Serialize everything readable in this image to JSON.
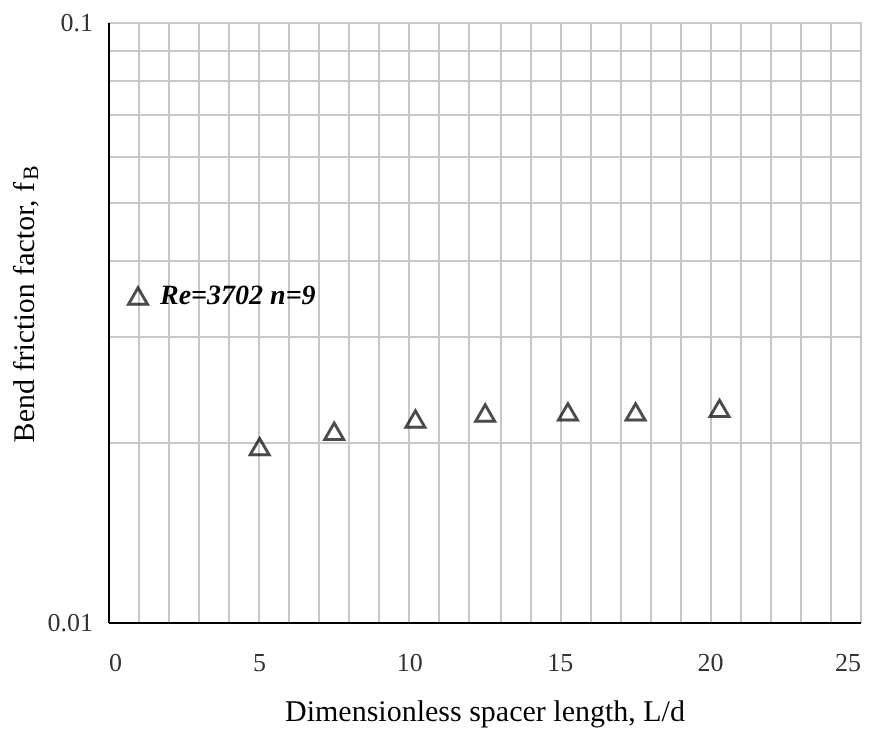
{
  "chart_data": {
    "type": "scatter",
    "xlabel": "Dimensionless spacer length, L/d",
    "ylabel": "Bend friction factor, f$_{B}$",
    "x": [
      5.04,
      7.52,
      10.22,
      12.54,
      15.29,
      17.54,
      20.33
    ],
    "series": [
      {
        "name": "Re=3702 n=9",
        "color": "#000000",
        "values": [
          0.0196,
          0.0208,
          0.0218,
          0.0223,
          0.0224,
          0.0224,
          0.0227
        ]
      }
    ],
    "marker": "triangle",
    "log": "y",
    "legend": "left",
    "grid": true,
    "xlim": [
      0,
      25
    ],
    "xticks": [
      0,
      {
        "value": 1,
        "label": null
      },
      {
        "value": 2,
        "label": null
      },
      {
        "value": 3,
        "label": null
      },
      {
        "value": 4,
        "label": null
      },
      5,
      {
        "value": 6,
        "label": null
      },
      {
        "value": 7,
        "label": null
      },
      {
        "value": 8,
        "label": null
      },
      {
        "value": 9,
        "label": null
      },
      10,
      {
        "value": 11,
        "label": null
      },
      {
        "value": 12,
        "label": null
      },
      {
        "value": 13,
        "label": null
      },
      {
        "value": 14,
        "label": null
      },
      15,
      {
        "value": 16,
        "label": null
      },
      {
        "value": 17,
        "label": null
      },
      {
        "value": 18,
        "label": null
      },
      {
        "value": 19,
        "label": null
      },
      20,
      {
        "value": 21,
        "label": null
      },
      {
        "value": 22,
        "label": null
      },
      {
        "value": 23,
        "label": null
      },
      {
        "value": 24,
        "label": null
      },
      25
    ],
    "ylim": [
      0.01,
      0.1
    ],
    "yticks": [
      0.01,
      {
        "value": 0.02,
        "label": null
      },
      {
        "value": 0.03,
        "label": null
      },
      {
        "value": 0.04,
        "label": null
      },
      {
        "value": 0.05,
        "label": null
      },
      {
        "value": 0.06,
        "label": null
      },
      {
        "value": 0.07,
        "label": null
      },
      {
        "value": 0.08,
        "label": null
      },
      {
        "value": 0.09,
        "label": null
      },
      0.1
    ]
  }
}
